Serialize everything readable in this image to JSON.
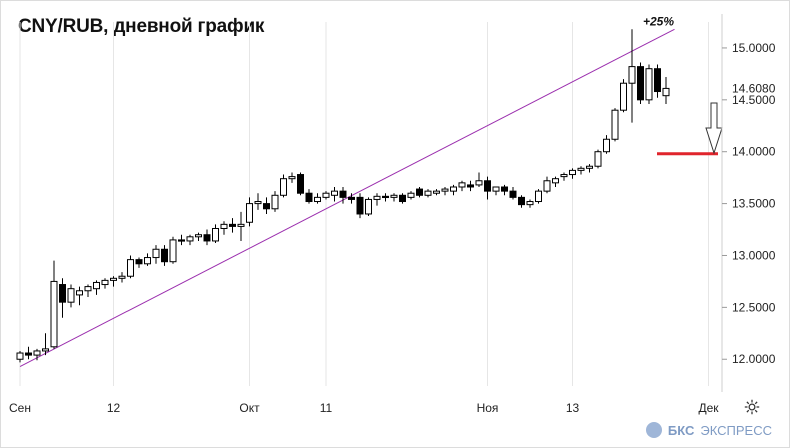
{
  "title": "CNY/RUB, дневной график",
  "brand": {
    "bold": "БКС",
    "rest": "ЭКСПРЕСС"
  },
  "annotation": "+25%",
  "colors": {
    "trendline": "#9b2fae",
    "support": "#e0242c",
    "candle": "#000000",
    "grid": "#e6e6e6",
    "brand": "#7f9bc4"
  },
  "icons": {
    "settings": "gear-icon",
    "arrow": "down-arrow-icon"
  },
  "chart_data": {
    "type": "candlestick",
    "title": "CNY/RUB, дневной график",
    "ylim": [
      11.8,
      15.25
    ],
    "y_ticks": [
      "12.0000",
      "12.5000",
      "13.0000",
      "13.5000",
      "14.0000",
      "14.5000",
      "15.0000"
    ],
    "x_ticks": [
      "Сен",
      "12",
      "Окт",
      "11",
      "Ноя",
      "13",
      "Дек"
    ],
    "x_tick_index": [
      0,
      11,
      27,
      36,
      55,
      65,
      81
    ],
    "last_price": "14.6080",
    "support_level": 13.98,
    "trendline": {
      "from": {
        "index": 0,
        "value": 11.93
      },
      "to": {
        "index": 77,
        "value": 15.18
      }
    },
    "candles": [
      [
        12.0,
        12.08,
        11.97,
        12.06
      ],
      [
        12.06,
        12.12,
        12.0,
        12.04
      ],
      [
        12.04,
        12.1,
        11.99,
        12.08
      ],
      [
        12.08,
        12.25,
        12.04,
        12.1
      ],
      [
        12.12,
        12.95,
        12.1,
        12.75
      ],
      [
        12.72,
        12.78,
        12.4,
        12.55
      ],
      [
        12.55,
        12.72,
        12.5,
        12.68
      ],
      [
        12.62,
        12.7,
        12.52,
        12.66
      ],
      [
        12.66,
        12.72,
        12.6,
        12.7
      ],
      [
        12.68,
        12.76,
        12.62,
        12.74
      ],
      [
        12.72,
        12.78,
        12.68,
        12.76
      ],
      [
        12.76,
        12.8,
        12.7,
        12.78
      ],
      [
        12.78,
        12.84,
        12.74,
        12.8
      ],
      [
        12.8,
        13.0,
        12.78,
        12.96
      ],
      [
        12.96,
        12.98,
        12.88,
        12.92
      ],
      [
        12.92,
        13.02,
        12.9,
        12.98
      ],
      [
        12.98,
        13.1,
        12.92,
        13.06
      ],
      [
        13.06,
        13.1,
        12.9,
        12.94
      ],
      [
        12.94,
        13.18,
        12.92,
        13.15
      ],
      [
        13.15,
        13.2,
        13.1,
        13.14
      ],
      [
        13.14,
        13.2,
        13.1,
        13.18
      ],
      [
        13.18,
        13.22,
        13.14,
        13.2
      ],
      [
        13.2,
        13.25,
        13.1,
        13.14
      ],
      [
        13.14,
        13.3,
        13.12,
        13.26
      ],
      [
        13.26,
        13.33,
        13.2,
        13.3
      ],
      [
        13.3,
        13.36,
        13.22,
        13.28
      ],
      [
        13.28,
        13.42,
        13.14,
        13.3
      ],
      [
        13.32,
        13.56,
        13.28,
        13.5
      ],
      [
        13.5,
        13.6,
        13.44,
        13.52
      ],
      [
        13.5,
        13.56,
        13.4,
        13.45
      ],
      [
        13.45,
        13.62,
        13.42,
        13.58
      ],
      [
        13.58,
        13.78,
        13.56,
        13.74
      ],
      [
        13.74,
        13.8,
        13.7,
        13.76
      ],
      [
        13.78,
        13.8,
        13.58,
        13.6
      ],
      [
        13.6,
        13.64,
        13.5,
        13.52
      ],
      [
        13.52,
        13.6,
        13.5,
        13.56
      ],
      [
        13.56,
        13.62,
        13.54,
        13.6
      ],
      [
        13.58,
        13.66,
        13.52,
        13.62
      ],
      [
        13.62,
        13.66,
        13.5,
        13.56
      ],
      [
        13.56,
        13.6,
        13.5,
        13.54
      ],
      [
        13.56,
        13.6,
        13.36,
        13.4
      ],
      [
        13.4,
        13.56,
        13.38,
        13.54
      ],
      [
        13.54,
        13.6,
        13.48,
        13.57
      ],
      [
        13.57,
        13.6,
        13.52,
        13.56
      ],
      [
        13.56,
        13.6,
        13.52,
        13.58
      ],
      [
        13.58,
        13.6,
        13.5,
        13.52
      ],
      [
        13.56,
        13.62,
        13.54,
        13.6
      ],
      [
        13.64,
        13.66,
        13.56,
        13.58
      ],
      [
        13.58,
        13.64,
        13.56,
        13.62
      ],
      [
        13.6,
        13.64,
        13.58,
        13.62
      ],
      [
        13.62,
        13.66,
        13.58,
        13.64
      ],
      [
        13.62,
        13.68,
        13.58,
        13.66
      ],
      [
        13.66,
        13.72,
        13.62,
        13.7
      ],
      [
        13.68,
        13.72,
        13.62,
        13.66
      ],
      [
        13.68,
        13.8,
        13.66,
        13.72
      ],
      [
        13.72,
        13.76,
        13.54,
        13.62
      ],
      [
        13.62,
        13.66,
        13.58,
        13.66
      ],
      [
        13.66,
        13.68,
        13.58,
        13.62
      ],
      [
        13.62,
        13.66,
        13.54,
        13.56
      ],
      [
        13.56,
        13.58,
        13.46,
        13.49
      ],
      [
        13.49,
        13.54,
        13.46,
        13.52
      ],
      [
        13.52,
        13.64,
        13.5,
        13.62
      ],
      [
        13.62,
        13.76,
        13.6,
        13.72
      ],
      [
        13.7,
        13.76,
        13.66,
        13.74
      ],
      [
        13.76,
        13.8,
        13.72,
        13.78
      ],
      [
        13.78,
        13.84,
        13.74,
        13.82
      ],
      [
        13.82,
        13.86,
        13.78,
        13.84
      ],
      [
        13.84,
        13.88,
        13.8,
        13.86
      ],
      [
        13.86,
        14.02,
        13.84,
        14.0
      ],
      [
        14.0,
        14.16,
        13.98,
        14.12
      ],
      [
        14.12,
        14.42,
        14.1,
        14.4
      ],
      [
        14.4,
        14.7,
        14.38,
        14.66
      ],
      [
        14.66,
        15.18,
        14.28,
        14.82
      ],
      [
        14.82,
        14.86,
        14.46,
        14.5
      ],
      [
        14.5,
        14.84,
        14.46,
        14.8
      ],
      [
        14.8,
        14.84,
        14.52,
        14.58
      ],
      [
        14.54,
        14.72,
        14.46,
        14.61
      ]
    ]
  }
}
